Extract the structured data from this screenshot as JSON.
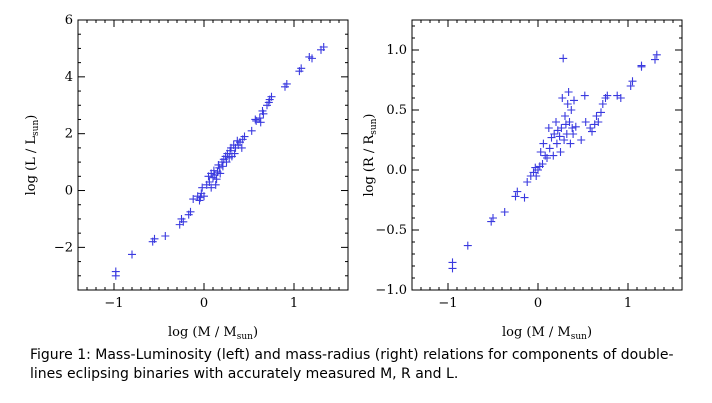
{
  "caption": "Figure 1: Mass-Luminosity (left) and mass-radius (right) relations for components of double-lines eclipsing binaries with accurately measured M, R and L.",
  "marker_color": "#3a3adf",
  "chart_data": [
    {
      "type": "scatter",
      "name": "mass-luminosity",
      "xlabel": "log (M / M",
      "xlabel_sub": "sun",
      "xlabel_end": ")",
      "ylabel": "log (L / L",
      "ylabel_sub": "sun",
      "ylabel_end": ")",
      "xlim": [
        -1.4,
        1.6
      ],
      "ylim": [
        -3.5,
        6
      ],
      "xticks": [
        {
          "v": -1,
          "label": "−1"
        },
        {
          "v": 0,
          "label": "0"
        },
        {
          "v": 1,
          "label": "1"
        }
      ],
      "yticks": [
        {
          "v": -2,
          "label": "−2"
        },
        {
          "v": 0,
          "label": "0"
        },
        {
          "v": 2,
          "label": "2"
        },
        {
          "v": 4,
          "label": "4"
        },
        {
          "v": 6,
          "label": "6"
        }
      ],
      "grid": false,
      "points": [
        [
          -0.98,
          -2.85
        ],
        [
          -0.98,
          -3.0
        ],
        [
          -0.8,
          -2.25
        ],
        [
          -0.57,
          -1.8
        ],
        [
          -0.55,
          -1.7
        ],
        [
          -0.43,
          -1.6
        ],
        [
          -0.27,
          -1.2
        ],
        [
          -0.25,
          -1.0
        ],
        [
          -0.23,
          -1.1
        ],
        [
          -0.17,
          -0.85
        ],
        [
          -0.15,
          -0.75
        ],
        [
          -0.12,
          -0.3
        ],
        [
          -0.07,
          -0.2
        ],
        [
          -0.05,
          -0.35
        ],
        [
          -0.04,
          -0.25
        ],
        [
          -0.03,
          -0.1
        ],
        [
          -0.02,
          0.1
        ],
        [
          0.0,
          -0.2
        ],
        [
          0.03,
          0.2
        ],
        [
          0.05,
          0.5
        ],
        [
          0.06,
          0.3
        ],
        [
          0.08,
          0.1
        ],
        [
          0.08,
          0.6
        ],
        [
          0.1,
          0.45
        ],
        [
          0.11,
          0.7
        ],
        [
          0.12,
          0.55
        ],
        [
          0.13,
          0.2
        ],
        [
          0.14,
          0.4
        ],
        [
          0.15,
          0.65
        ],
        [
          0.16,
          0.9
        ],
        [
          0.17,
          0.8
        ],
        [
          0.18,
          0.6
        ],
        [
          0.2,
          1.0
        ],
        [
          0.21,
          0.85
        ],
        [
          0.22,
          1.1
        ],
        [
          0.24,
          1.2
        ],
        [
          0.25,
          1.0
        ],
        [
          0.26,
          1.3
        ],
        [
          0.28,
          1.15
        ],
        [
          0.29,
          1.4
        ],
        [
          0.3,
          1.5
        ],
        [
          0.31,
          1.2
        ],
        [
          0.33,
          1.6
        ],
        [
          0.34,
          1.3
        ],
        [
          0.35,
          1.5
        ],
        [
          0.37,
          1.75
        ],
        [
          0.38,
          1.6
        ],
        [
          0.4,
          1.7
        ],
        [
          0.42,
          1.5
        ],
        [
          0.43,
          1.8
        ],
        [
          0.45,
          1.9
        ],
        [
          0.53,
          2.1
        ],
        [
          0.57,
          2.5
        ],
        [
          0.58,
          2.45
        ],
        [
          0.62,
          2.55
        ],
        [
          0.63,
          2.4
        ],
        [
          0.65,
          2.8
        ],
        [
          0.66,
          2.7
        ],
        [
          0.7,
          3.0
        ],
        [
          0.72,
          3.1
        ],
        [
          0.75,
          3.3
        ],
        [
          0.73,
          3.2
        ],
        [
          0.9,
          3.65
        ],
        [
          0.92,
          3.75
        ],
        [
          1.06,
          4.2
        ],
        [
          1.08,
          4.3
        ],
        [
          1.17,
          4.7
        ],
        [
          1.2,
          4.65
        ],
        [
          1.3,
          4.95
        ],
        [
          1.33,
          5.05
        ]
      ]
    },
    {
      "type": "scatter",
      "name": "mass-radius",
      "xlabel": "log (M / M",
      "xlabel_sub": "sun",
      "xlabel_end": ")",
      "ylabel": "log (R / R",
      "ylabel_sub": "sun",
      "ylabel_end": ")",
      "xlim": [
        -1.4,
        1.6
      ],
      "ylim": [
        -1.0,
        1.25
      ],
      "xticks": [
        {
          "v": -1,
          "label": "−1"
        },
        {
          "v": 0,
          "label": "0"
        },
        {
          "v": 1,
          "label": "1"
        }
      ],
      "yticks": [
        {
          "v": -1.0,
          "label": "−1.0"
        },
        {
          "v": -0.5,
          "label": "−0.5"
        },
        {
          "v": 0.0,
          "label": "0.0"
        },
        {
          "v": 0.5,
          "label": "0.5"
        },
        {
          "v": 1.0,
          "label": "1.0"
        }
      ],
      "grid": false,
      "points": [
        [
          -0.95,
          -0.77
        ],
        [
          -0.95,
          -0.82
        ],
        [
          -0.78,
          -0.63
        ],
        [
          -0.52,
          -0.43
        ],
        [
          -0.5,
          -0.4
        ],
        [
          -0.37,
          -0.35
        ],
        [
          -0.25,
          -0.22
        ],
        [
          -0.23,
          -0.18
        ],
        [
          -0.15,
          -0.23
        ],
        [
          -0.12,
          -0.1
        ],
        [
          -0.08,
          -0.05
        ],
        [
          -0.05,
          -0.02
        ],
        [
          -0.03,
          0.02
        ],
        [
          -0.02,
          -0.05
        ],
        [
          0.0,
          0.0
        ],
        [
          0.02,
          0.03
        ],
        [
          0.03,
          0.15
        ],
        [
          0.05,
          0.05
        ],
        [
          0.06,
          0.22
        ],
        [
          0.08,
          0.12
        ],
        [
          0.1,
          0.1
        ],
        [
          0.12,
          0.35
        ],
        [
          0.13,
          0.18
        ],
        [
          0.15,
          0.27
        ],
        [
          0.17,
          0.12
        ],
        [
          0.18,
          0.3
        ],
        [
          0.2,
          0.4
        ],
        [
          0.21,
          0.22
        ],
        [
          0.22,
          0.33
        ],
        [
          0.24,
          0.28
        ],
        [
          0.25,
          0.15
        ],
        [
          0.26,
          0.35
        ],
        [
          0.27,
          0.6
        ],
        [
          0.28,
          0.93
        ],
        [
          0.29,
          0.25
        ],
        [
          0.3,
          0.45
        ],
        [
          0.31,
          0.38
        ],
        [
          0.32,
          0.3
        ],
        [
          0.33,
          0.55
        ],
        [
          0.34,
          0.65
        ],
        [
          0.35,
          0.4
        ],
        [
          0.36,
          0.22
        ],
        [
          0.37,
          0.5
        ],
        [
          0.38,
          0.35
        ],
        [
          0.39,
          0.3
        ],
        [
          0.4,
          0.58
        ],
        [
          0.42,
          0.36
        ],
        [
          0.48,
          0.25
        ],
        [
          0.52,
          0.62
        ],
        [
          0.53,
          0.4
        ],
        [
          0.58,
          0.35
        ],
        [
          0.6,
          0.32
        ],
        [
          0.63,
          0.38
        ],
        [
          0.65,
          0.45
        ],
        [
          0.67,
          0.4
        ],
        [
          0.7,
          0.48
        ],
        [
          0.72,
          0.55
        ],
        [
          0.75,
          0.6
        ],
        [
          0.77,
          0.62
        ],
        [
          0.88,
          0.62
        ],
        [
          0.92,
          0.6
        ],
        [
          1.03,
          0.7
        ],
        [
          1.05,
          0.74
        ],
        [
          1.15,
          0.87
        ],
        [
          1.15,
          0.86
        ],
        [
          1.3,
          0.92
        ],
        [
          1.32,
          0.96
        ]
      ]
    }
  ]
}
